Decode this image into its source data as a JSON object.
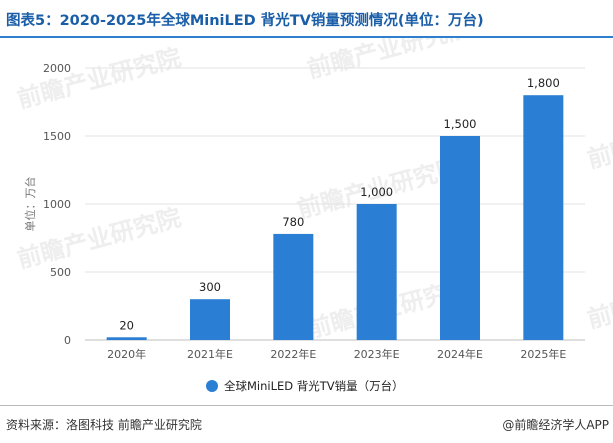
{
  "title": "图表5：2020-2025年全球MiniLED 背光TV销量预测情况(单位：万台)",
  "footer": {
    "source": "资料来源：洛图科技 前瞻产业研究院",
    "brand": "@前瞻经济学人APP"
  },
  "watermark": "前瞻产业研究院",
  "colors": {
    "bar": "#2a7fd4",
    "title": "#1a5ea8",
    "rule": "#2f7fcf"
  },
  "chart_data": {
    "type": "bar",
    "categories": [
      "2020年",
      "2021年E",
      "2022年E",
      "2023年E",
      "2024年E",
      "2025年E"
    ],
    "series": [
      {
        "name": "全球MiniLED 背光TV销量（万台）",
        "values": [
          20,
          300,
          780,
          1000,
          1500,
          1800
        ]
      }
    ],
    "data_labels": [
      "20",
      "300",
      "780",
      "1,000",
      "1,500",
      "1,800"
    ],
    "ylabel": "单位：万台",
    "xlabel": "",
    "ylim": [
      0,
      2000
    ],
    "yticks": [
      0,
      500,
      1000,
      1500,
      2000
    ],
    "grid": true,
    "legend_position": "bottom"
  }
}
